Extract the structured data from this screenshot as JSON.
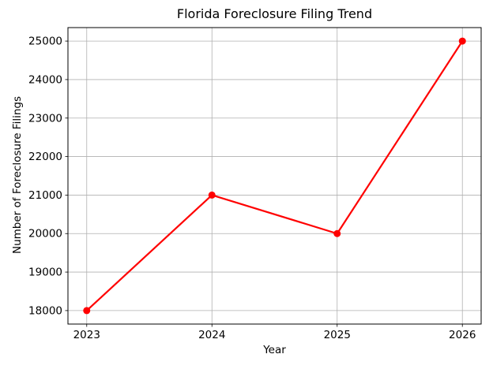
{
  "figure": {
    "background": "#ffffff"
  },
  "chart_data": {
    "type": "line",
    "title": "Florida Foreclosure Filing Trend",
    "xlabel": "Year",
    "ylabel": "Number of Foreclosure Filings",
    "x": [
      2023,
      2024,
      2025,
      2026
    ],
    "values": [
      18000,
      21000,
      20000,
      25000
    ],
    "xtick_labels": [
      "2023",
      "2024",
      "2025",
      "2026"
    ],
    "ytick_values": [
      18000,
      19000,
      20000,
      21000,
      22000,
      23000,
      24000,
      25000
    ],
    "ytick_labels": [
      "18000",
      "19000",
      "20000",
      "21000",
      "22000",
      "23000",
      "24000",
      "25000"
    ],
    "xlim": [
      2022.85,
      2026.15
    ],
    "ylim": [
      17650,
      25350
    ],
    "grid": true,
    "legend": false,
    "line_color": "#ff0000",
    "marker": "circle",
    "grid_color": "#b0b0b0",
    "spine_color": "#000000",
    "text_color": "#000000"
  }
}
